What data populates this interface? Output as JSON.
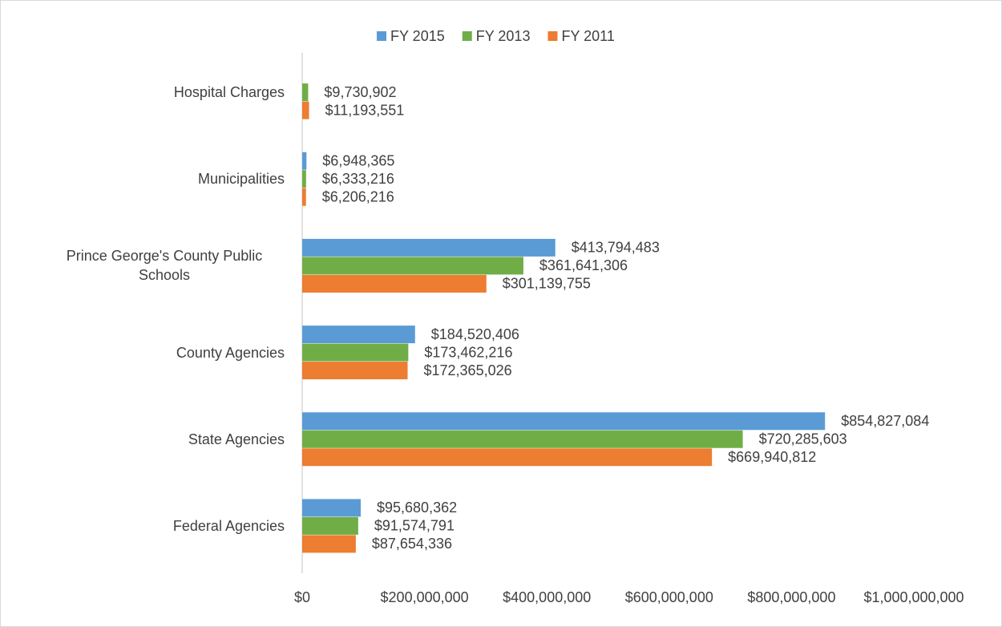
{
  "chart_data": {
    "type": "hbar",
    "categories": [
      "Hospital Charges",
      "Municipalities",
      "Prince George's County Public Schools",
      "County Agencies",
      "State Agencies",
      "Federal Agencies"
    ],
    "series": [
      {
        "name": "FY 2015",
        "color": "#5b9bd5",
        "values": [
          null,
          6948365,
          413794483,
          184520406,
          854827084,
          95680362
        ],
        "value_labels": [
          null,
          "$6,948,365",
          "$413,794,483",
          "$184,520,406",
          "$854,827,084",
          "$95,680,362"
        ]
      },
      {
        "name": "FY 2013",
        "color": "#70ad47",
        "values": [
          9730902,
          6333216,
          361641306,
          173462216,
          720285603,
          91574791
        ],
        "value_labels": [
          "$9,730,902",
          "$6,333,216",
          "$361,641,306",
          "$173,462,216",
          "$720,285,603",
          "$91,574,791"
        ]
      },
      {
        "name": "FY 2011",
        "color": "#ed7d31",
        "values": [
          11193551,
          6206216,
          301139755,
          172365026,
          669940812,
          87654336
        ],
        "value_labels": [
          "$11,193,551",
          "$6,206,216",
          "$301,139,755",
          "$172,365,026",
          "$669,940,812",
          "$87,654,336"
        ]
      }
    ],
    "xlim": [
      0,
      1000000000
    ],
    "xticks": [
      {
        "value": 0,
        "label": "$0"
      },
      {
        "value": 200000000,
        "label": "$200,000,000"
      },
      {
        "value": 400000000,
        "label": "$400,000,000"
      },
      {
        "value": 600000000,
        "label": "$600,000,000"
      },
      {
        "value": 800000000,
        "label": "$800,000,000"
      },
      {
        "value": 1000000000,
        "label": "$1,000,000,000"
      }
    ],
    "legend": "top"
  }
}
